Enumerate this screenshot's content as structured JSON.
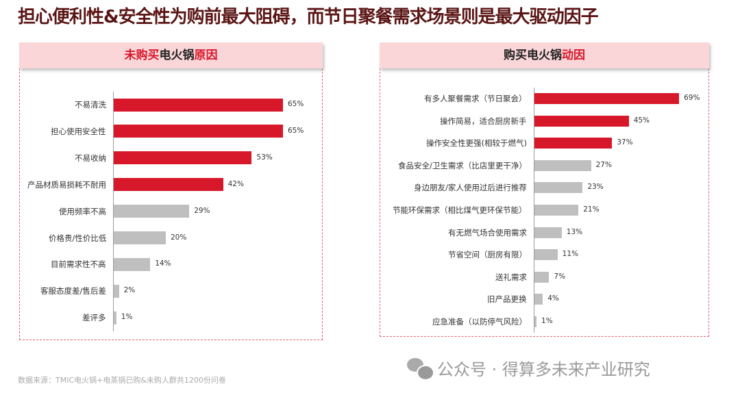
{
  "title": "担心便利性&安全性为购前最大阻碍，而节日聚餐需求场景则是最大驱动因子",
  "left_header": {
    "p1": "未购买",
    "p2": "电火锅",
    "p3": "原因"
  },
  "right_header": {
    "p1": "购买电火锅",
    "p2": "动因"
  },
  "source": "数据来源：TMIC电火锅+电蒸锅已购&未购人群共1200份问卷",
  "watermark": "公众号 · 得算多未来产业研究",
  "colors": {
    "highlight": "#d7182a",
    "normal": "#bfbfbf"
  },
  "chart_data": [
    {
      "type": "bar",
      "orientation": "horizontal",
      "title": "未购买电火锅原因",
      "unit": "%",
      "categories": [
        "不易清洗",
        "担心使用安全性",
        "不易收纳",
        "产品材质易损耗不耐用",
        "使用频率不高",
        "价格贵/性价比低",
        "目前需求性不高",
        "客服态度差/售后差",
        "差评多"
      ],
      "values": [
        65,
        65,
        53,
        42,
        29,
        20,
        14,
        2,
        1
      ],
      "highlighted": [
        true,
        true,
        true,
        true,
        false,
        false,
        false,
        false,
        false
      ]
    },
    {
      "type": "bar",
      "orientation": "horizontal",
      "title": "购买电火锅动因",
      "unit": "%",
      "categories": [
        "有多人聚餐需求（节日聚会）",
        "操作简易，适合厨房新手",
        "操作安全性更强(相较于燃气)",
        "食品安全/卫生需求（比店里更干净）",
        "身边朋友/家人使用过后进行推荐",
        "节能环保需求（相比煤气更环保节能）",
        "有无燃气场合使用需求",
        "节省空间（厨房有限）",
        "送礼需求",
        "旧产品更换",
        "应急准备（以防停气风险）"
      ],
      "values": [
        69,
        45,
        37,
        27,
        23,
        21,
        13,
        11,
        7,
        4,
        1
      ],
      "highlighted": [
        true,
        true,
        true,
        false,
        false,
        false,
        false,
        false,
        false,
        false,
        false
      ]
    }
  ]
}
